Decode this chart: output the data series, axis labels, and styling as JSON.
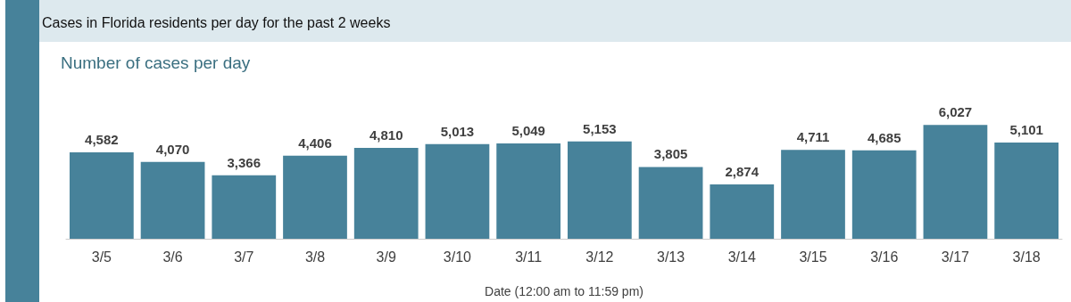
{
  "chart_data": {
    "type": "bar",
    "title": "Cases in Florida residents per day for the past 2 weeks",
    "subtitle": "Number of cases per day",
    "xlabel": "Date (12:00 am to 11:59 pm)",
    "categories": [
      "3/5",
      "3/6",
      "3/7",
      "3/8",
      "3/9",
      "3/10",
      "3/11",
      "3/12",
      "3/13",
      "3/14",
      "3/15",
      "3/16",
      "3/17",
      "3/18"
    ],
    "values": [
      4582,
      4070,
      3366,
      4406,
      4810,
      5013,
      5049,
      5153,
      3805,
      2874,
      4711,
      4685,
      6027,
      5101
    ],
    "value_labels": [
      "4,582",
      "4,070",
      "3,366",
      "4,406",
      "4,810",
      "5,013",
      "5,049",
      "5,153",
      "3,805",
      "2,874",
      "4,711",
      "4,685",
      "6,027",
      "5,101"
    ],
    "color": "#47829a"
  }
}
